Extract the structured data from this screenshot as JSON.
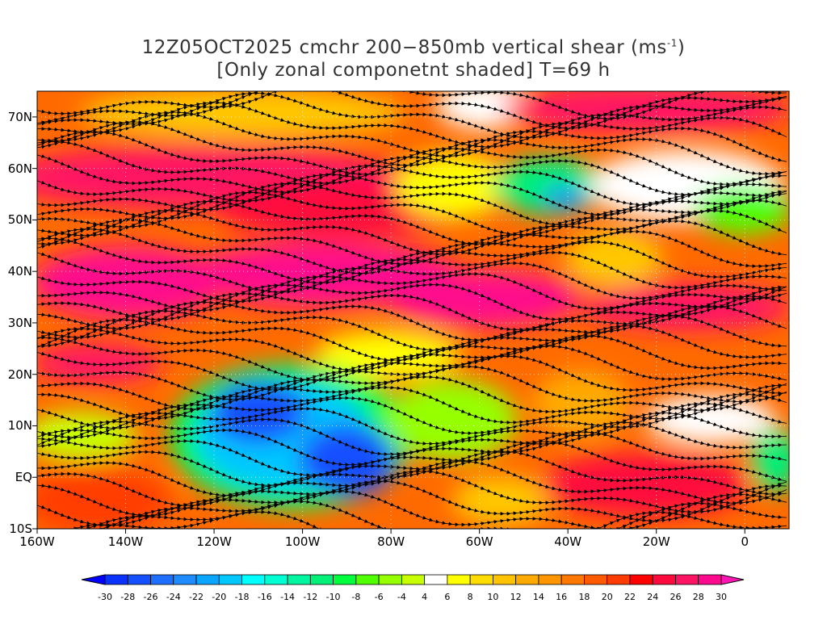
{
  "title": {
    "line1": "12Z05OCT2025 cmchr 200−850mb vertical shear (ms",
    "line1_sup": "-1",
    "line1_end": ")",
    "line2": "[Only zonal componetnt shaded] T=69 h"
  },
  "axes": {
    "lat_labels": [
      {
        "label": "70N",
        "value": 70
      },
      {
        "label": "60N",
        "value": 60
      },
      {
        "label": "50N",
        "value": 50
      },
      {
        "label": "40N",
        "value": 40
      },
      {
        "label": "30N",
        "value": 30
      },
      {
        "label": "20N",
        "value": 20
      },
      {
        "label": "10N",
        "value": 10
      },
      {
        "label": "EQ",
        "value": 0
      },
      {
        "label": "10S",
        "value": -10
      }
    ],
    "lon_labels": [
      {
        "label": "160W",
        "value": -160
      },
      {
        "label": "140W",
        "value": -140
      },
      {
        "label": "120W",
        "value": -120
      },
      {
        "label": "100W",
        "value": -100
      },
      {
        "label": "80W",
        "value": -80
      },
      {
        "label": "60W",
        "value": -60
      },
      {
        "label": "40W",
        "value": -40
      },
      {
        "label": "20W",
        "value": -20
      },
      {
        "label": "0",
        "value": 0
      }
    ],
    "lon_range": [
      -160,
      10
    ],
    "lat_range": [
      -10,
      75
    ]
  },
  "colorbar": {
    "labels": [
      "-30",
      "-28",
      "-26",
      "-24",
      "-22",
      "-20",
      "-18",
      "-16",
      "-14",
      "-12",
      "-10",
      "-8",
      "-6",
      "-4",
      "4",
      "6",
      "8",
      "10",
      "12",
      "14",
      "16",
      "18",
      "20",
      "22",
      "24",
      "26",
      "28",
      "30"
    ],
    "colors": [
      "#0a32ff",
      "#1450ff",
      "#1e6eff",
      "#1e8cff",
      "#0aa5ff",
      "#00c8ff",
      "#00ffff",
      "#00ffd2",
      "#00f5a0",
      "#00f078",
      "#00ff3c",
      "#50ff00",
      "#96ff00",
      "#c8ff00",
      "#ffffff",
      "#ffff00",
      "#ffdc00",
      "#ffc300",
      "#ffaa00",
      "#ff9600",
      "#ff7800",
      "#ff5a00",
      "#ff3c00",
      "#ff0000",
      "#ff0a3c",
      "#ff1464",
      "#ff0a8c"
    ],
    "under_color": "#0000ff",
    "over_color": "#ff14b4"
  }
}
